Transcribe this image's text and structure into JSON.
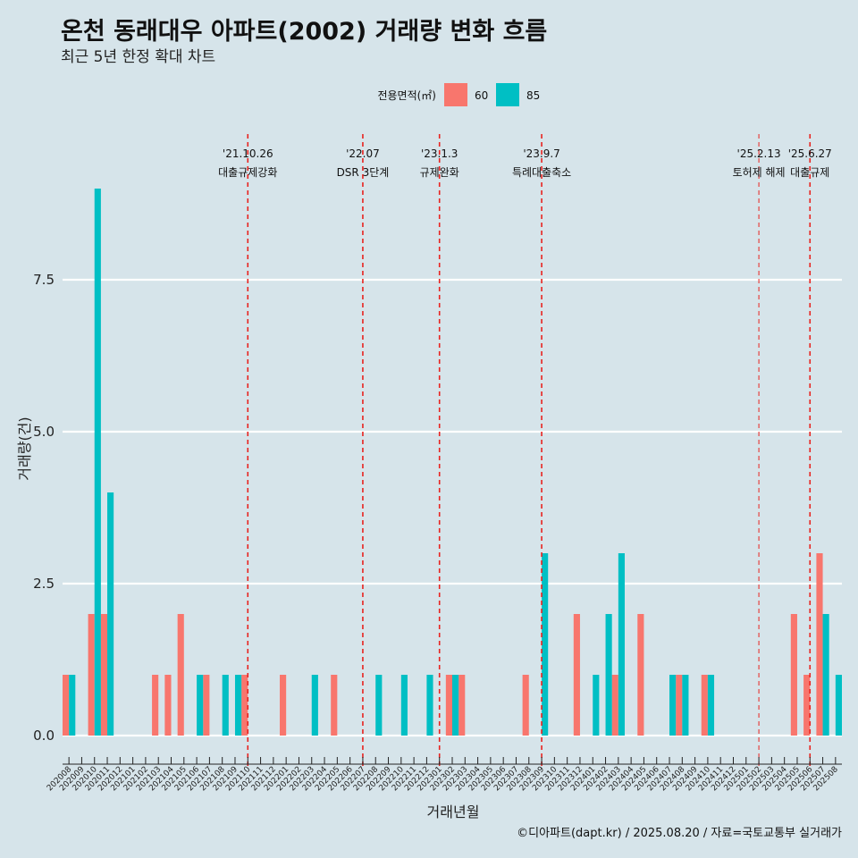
{
  "chart_data": {
    "type": "bar",
    "title": "온천 동래대우 아파트(2002) 거래량 변화 흐름",
    "subtitle": "최근 5년 한정 확대 차트",
    "xlabel": "거래년월",
    "ylabel": "거래량(건)",
    "ylim": [
      -0.5,
      9.5
    ],
    "yticks": [
      0.0,
      2.5,
      5.0,
      7.5
    ],
    "ytick_labels": [
      "0.0",
      "2.5",
      "5.0",
      "7.5"
    ],
    "legend": {
      "title": "전용면적(㎡)",
      "position": "top",
      "entries": [
        {
          "name": "60",
          "color": "#f8766d"
        },
        {
          "name": "85",
          "color": "#00bfc4"
        }
      ]
    },
    "categories": [
      "202008",
      "202009",
      "202010",
      "202011",
      "202012",
      "202101",
      "202102",
      "202103",
      "202104",
      "202105",
      "202106",
      "202107",
      "202108",
      "202109",
      "202110",
      "202111",
      "202112",
      "202201",
      "202202",
      "202203",
      "202204",
      "202205",
      "202206",
      "202207",
      "202208",
      "202209",
      "202210",
      "202211",
      "202212",
      "202301",
      "202302",
      "202303",
      "202304",
      "202305",
      "202306",
      "202307",
      "202308",
      "202309",
      "202310",
      "202311",
      "202312",
      "202401",
      "202402",
      "202403",
      "202404",
      "202405",
      "202406",
      "202407",
      "202408",
      "202409",
      "202410",
      "202411",
      "202412",
      "202501",
      "202502",
      "202503",
      "202504",
      "202505",
      "202506",
      "202507",
      "202508"
    ],
    "series": [
      {
        "name": "60",
        "color": "#f8766d",
        "values": [
          1,
          0,
          2,
          2,
          0,
          0,
          0,
          1,
          1,
          2,
          0,
          1,
          0,
          0,
          1,
          0,
          0,
          1,
          0,
          0,
          0,
          1,
          0,
          0,
          0,
          0,
          0,
          0,
          0,
          0,
          1,
          1,
          0,
          0,
          0,
          0,
          1,
          0,
          0,
          0,
          2,
          0,
          0,
          1,
          0,
          2,
          0,
          0,
          1,
          0,
          1,
          0,
          0,
          0,
          0,
          0,
          0,
          2,
          1,
          3,
          0
        ]
      },
      {
        "name": "85",
        "color": "#00bfc4",
        "values": [
          1,
          0,
          9,
          4,
          0,
          0,
          0,
          0,
          0,
          0,
          1,
          0,
          1,
          1,
          0,
          0,
          0,
          0,
          0,
          1,
          0,
          0,
          0,
          0,
          1,
          0,
          1,
          0,
          1,
          0,
          1,
          0,
          0,
          0,
          0,
          0,
          0,
          3,
          0,
          0,
          0,
          1,
          2,
          3,
          0,
          0,
          0,
          1,
          1,
          0,
          1,
          0,
          0,
          0,
          0,
          0,
          0,
          0,
          0,
          2,
          1
        ]
      }
    ],
    "events": [
      {
        "date": "'21.10.26",
        "label": "대출규제강화",
        "month": "202110",
        "size": "normal"
      },
      {
        "date": "'22.07",
        "label": "DSR 3단계",
        "month": "202207",
        "size": "normal"
      },
      {
        "date": "'23.1.3",
        "label": "규제완화",
        "month": "202301",
        "size": "normal"
      },
      {
        "date": "'23.9.7",
        "label": "특례대출축소",
        "month": "202309",
        "size": "normal"
      },
      {
        "date": "'25.2.13",
        "label": "토허제 해제",
        "month": "202502",
        "size": "small"
      },
      {
        "date": "'25.6.27",
        "label": "대출규제",
        "month": "202506",
        "size": "normal"
      }
    ],
    "caption": "©디아파트(dapt.kr) / 2025.08.20 / 자료=국토교통부 실거래가"
  }
}
